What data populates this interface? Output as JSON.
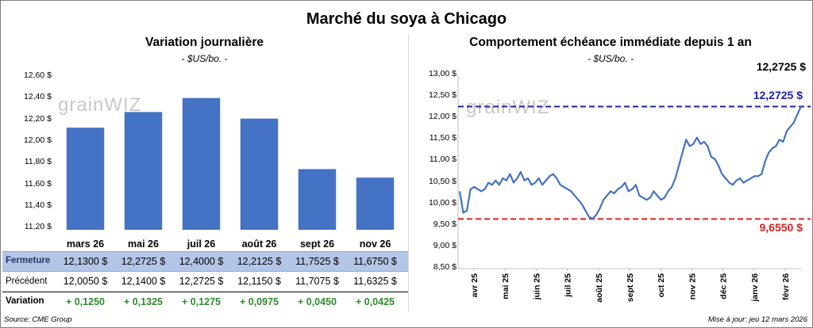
{
  "header": {
    "title": "Marché du soya à Chicago"
  },
  "left_panel": {
    "title": "Variation journalière",
    "unit": "- $US/bo. -",
    "watermark": "grainWIZ",
    "yticks": [
      "12,60 $",
      "12,40 $",
      "12,20 $",
      "12,00 $",
      "11,80 $",
      "11,60 $",
      "11,40 $",
      "11,20 $"
    ],
    "table": {
      "columns": [
        "mars 26",
        "mai 26",
        "juil 26",
        "août 26",
        "sept 26",
        "nov 26"
      ],
      "rows": [
        {
          "label": "Fermeture",
          "values": [
            "12,1300  $",
            "12,2725  $",
            "12,4000  $",
            "12,2125  $",
            "11,7525  $",
            "11,6750  $"
          ]
        },
        {
          "label": "Précédent",
          "values": [
            "12,0050  $",
            "12,1400  $",
            "12,2725  $",
            "12,1150  $",
            "11,7075  $",
            "11,6325  $"
          ]
        },
        {
          "label": "Variation",
          "values": [
            "+ 0,1250",
            "+ 0,1325",
            "+ 0,1275",
            "+ 0,0975",
            "+ 0,0450",
            "+ 0,0425"
          ]
        }
      ]
    }
  },
  "right_panel": {
    "title": "Comportement  échéance immédiate depuis 1 an",
    "unit": "- $US/bo. -",
    "watermark": "grainWIZ",
    "last_value_label": "12,2725 $",
    "high_label": "12,2725  $",
    "low_label": "9,6550  $",
    "yticks": [
      "13,00 $",
      "12,50 $",
      "12,00 $",
      "11,50 $",
      "11,00 $",
      "10,50 $",
      "10,00 $",
      "9,50 $",
      "9,00 $",
      "8,50 $"
    ],
    "xticks": [
      "avr 25",
      "mai 25",
      "juin 25",
      "juil 25",
      "août 25",
      "sept 25",
      "oct 25",
      "nov 25",
      "déc 25",
      "janv 26",
      "févr 26"
    ]
  },
  "footer": {
    "source": "Source: CME Group",
    "updated": "Mise à jour: jeu 12 mars 2026"
  },
  "colors": {
    "bar": "#4472c4",
    "line": "#4472c4",
    "high_line": "#1f1fa8",
    "low_line": "#e02020",
    "table_header_bg": "#b4c6e7",
    "variation": "#2e8b2e"
  },
  "chart_data": [
    {
      "type": "bar",
      "title": "Variation journalière",
      "ylabel": "$US/bo.",
      "categories": [
        "mars 26",
        "mai 26",
        "juil 26",
        "août 26",
        "sept 26",
        "nov 26"
      ],
      "values": [
        12.13,
        12.2725,
        12.4,
        12.2125,
        11.7525,
        11.675
      ],
      "ylim": [
        11.2,
        12.6
      ],
      "grid": false
    },
    {
      "type": "line",
      "title": "Comportement  échéance immédiate depuis 1 an",
      "ylabel": "$US/bo.",
      "ylim": [
        8.5,
        13.0
      ],
      "x_range": [
        "2025-03-12",
        "2026-03-12"
      ],
      "grid": false,
      "series": [
        {
          "values": [
            10.3,
            9.8,
            9.85,
            10.35,
            10.4,
            10.35,
            10.3,
            10.35,
            10.5,
            10.45,
            10.55,
            10.45,
            10.6,
            10.55,
            10.7,
            10.5,
            10.6,
            10.75,
            10.55,
            10.6,
            10.45,
            10.5,
            10.6,
            10.45,
            10.55,
            10.65,
            10.7,
            10.6,
            10.45,
            10.4,
            10.35,
            10.3,
            10.2,
            10.1,
            10.0,
            9.85,
            9.7,
            9.66,
            9.75,
            9.9,
            10.1,
            10.2,
            10.3,
            10.25,
            10.35,
            10.4,
            10.5,
            10.3,
            10.35,
            10.45,
            10.2,
            10.15,
            10.1,
            10.15,
            10.3,
            10.2,
            10.1,
            10.15,
            10.3,
            10.4,
            10.6,
            10.9,
            11.2,
            11.5,
            11.35,
            11.4,
            11.55,
            11.4,
            11.45,
            11.35,
            11.1,
            11.05,
            10.9,
            10.7,
            10.6,
            10.5,
            10.45,
            10.55,
            10.6,
            10.5,
            10.55,
            10.6,
            10.65,
            10.65,
            10.7,
            11.0,
            11.2,
            11.3,
            11.35,
            11.5,
            11.45,
            11.7,
            11.8,
            11.9,
            12.1,
            12.2725
          ]
        },
        {
          "name": "max",
          "values": [
            12.2725
          ]
        },
        {
          "name": "min",
          "values": [
            9.655
          ]
        }
      ]
    }
  ]
}
